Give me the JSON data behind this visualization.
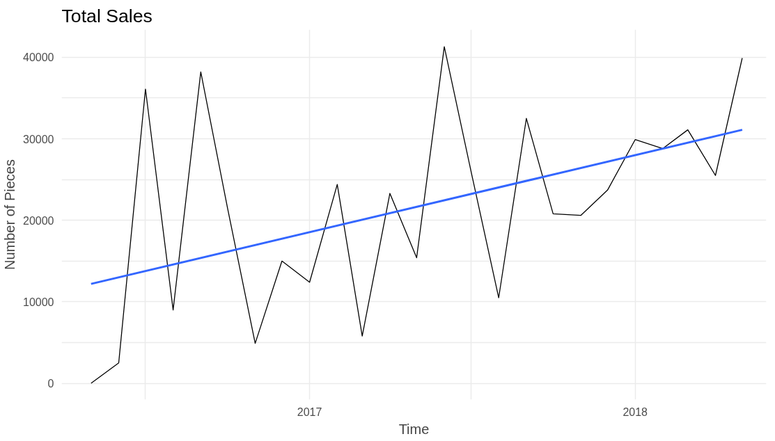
{
  "chart_data": {
    "type": "line",
    "title": "Total Sales",
    "xlabel": "Time",
    "ylabel": "Number of Pieces",
    "x": [
      "2016-05",
      "2016-06",
      "2016-07",
      "2016-08",
      "2016-09",
      "2016-10",
      "2016-11",
      "2016-12",
      "2017-01",
      "2017-02",
      "2017-03",
      "2017-04",
      "2017-05",
      "2017-06",
      "2017-07",
      "2017-08",
      "2017-09",
      "2017-10",
      "2017-11",
      "2017-12",
      "2018-01",
      "2018-02",
      "2018-03",
      "2018-04",
      "2018-05"
    ],
    "series": [
      {
        "color": "#000000",
        "values": [
          0,
          2500,
          36100,
          9000,
          38200,
          21500,
          4900,
          15000,
          12400,
          24400,
          5800,
          23300,
          15400,
          41300,
          26000,
          10500,
          32500,
          20800,
          20600,
          23700,
          29900,
          28800,
          31100,
          25500,
          39900
        ]
      },
      {
        "type": "line",
        "color": "#3366ff",
        "x": [
          "2016-05",
          "2018-05"
        ],
        "values": [
          12200,
          31100
        ]
      }
    ],
    "xlim": [
      "2016-03-29",
      "2018-05-28"
    ],
    "xticks": [
      {
        "value": "2016-07",
        "label": null
      },
      {
        "value": "2017",
        "label": "2017"
      },
      {
        "value": "2017-07",
        "label": null
      },
      {
        "value": "2018",
        "label": "2018"
      }
    ],
    "ylim": [
      -2000,
      43400
    ],
    "yticks": [
      0,
      {
        "value": 5000,
        "label": null
      },
      10000,
      {
        "value": 15000,
        "label": null
      },
      20000,
      {
        "value": 25000,
        "label": null
      },
      30000,
      {
        "value": 35000,
        "label": null
      },
      40000
    ],
    "grid": true,
    "marker": "none",
    "line_style": "solid"
  }
}
